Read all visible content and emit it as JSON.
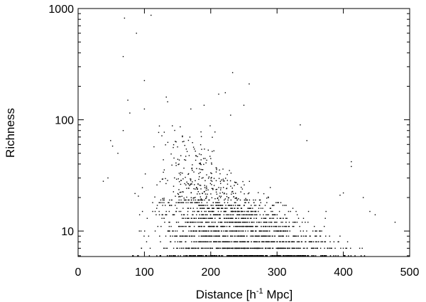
{
  "chart_data": {
    "type": "scatter",
    "title": "",
    "xlabel_main": "Distance [h",
    "xlabel_sup": "-1",
    "xlabel_tail": " Mpc]",
    "ylabel": "Richness",
    "xlim": [
      0,
      500
    ],
    "ylim": [
      5.9,
      1000
    ],
    "yscale": "log",
    "grid": false,
    "legend": "none",
    "point_color": "#000000",
    "xticks": [
      0,
      100,
      200,
      300,
      400,
      500
    ],
    "xtick_labels": [
      "0",
      "100",
      "200",
      "300",
      "400",
      "500"
    ],
    "yticks": [
      10,
      100,
      1000
    ],
    "ytick_labels": [
      "10",
      "100",
      "1000"
    ],
    "band_series": [
      {
        "richness": 6,
        "x_range": [
          28,
          497
        ],
        "count": 300
      },
      {
        "richness": 7,
        "x_range": [
          28,
          488
        ],
        "count": 230
      },
      {
        "richness": 8,
        "x_range": [
          33,
          468
        ],
        "count": 190
      },
      {
        "richness": 9,
        "x_range": [
          36,
          455
        ],
        "count": 170
      },
      {
        "richness": 10,
        "x_range": [
          40,
          445
        ],
        "count": 140
      },
      {
        "richness": 11,
        "x_range": [
          45,
          435
        ],
        "count": 120
      },
      {
        "richness": 12,
        "x_range": [
          45,
          425
        ],
        "count": 110
      },
      {
        "richness": 13,
        "x_range": [
          48,
          415
        ],
        "count": 95
      },
      {
        "richness": 14,
        "x_range": [
          50,
          405
        ],
        "count": 85
      },
      {
        "richness": 15,
        "x_range": [
          52,
          395
        ],
        "count": 75
      },
      {
        "richness": 16,
        "x_range": [
          55,
          385
        ],
        "count": 65
      },
      {
        "richness": 17,
        "x_range": [
          58,
          375
        ],
        "count": 58
      },
      {
        "richness": 18,
        "x_range": [
          58,
          365
        ],
        "count": 52
      },
      {
        "richness": 19,
        "x_range": [
          60,
          355
        ],
        "count": 46
      },
      {
        "richness": 20,
        "x_range": [
          60,
          345
        ],
        "count": 42
      },
      {
        "richness": 22,
        "x_range": [
          62,
          335
        ],
        "count": 38
      },
      {
        "richness": 24,
        "x_range": [
          64,
          320
        ],
        "count": 32
      },
      {
        "richness": 26,
        "x_range": [
          66,
          310
        ],
        "count": 28
      },
      {
        "richness": 28,
        "x_range": [
          68,
          300
        ],
        "count": 24
      },
      {
        "richness": 30,
        "x_range": [
          70,
          290
        ],
        "count": 22
      },
      {
        "richness": 33,
        "x_range": [
          70,
          285
        ],
        "count": 18
      },
      {
        "richness": 36,
        "x_range": [
          72,
          280
        ],
        "count": 16
      },
      {
        "richness": 40,
        "x_range": [
          72,
          275
        ],
        "count": 14
      },
      {
        "richness": 44,
        "x_range": [
          75,
          270
        ],
        "count": 12
      },
      {
        "richness": 48,
        "x_range": [
          75,
          265
        ],
        "count": 10
      },
      {
        "richness": 53,
        "x_range": [
          78,
          260
        ],
        "count": 9
      },
      {
        "richness": 58,
        "x_range": [
          80,
          255
        ],
        "count": 8
      },
      {
        "richness": 64,
        "x_range": [
          80,
          250
        ],
        "count": 7
      },
      {
        "richness": 70,
        "x_range": [
          85,
          245
        ],
        "count": 6
      },
      {
        "richness": 78,
        "x_range": [
          85,
          240
        ],
        "count": 5
      },
      {
        "richness": 86,
        "x_range": [
          90,
          235
        ],
        "count": 4
      }
    ],
    "outliers": [
      {
        "x": 70,
        "y": 820
      },
      {
        "x": 110,
        "y": 870
      },
      {
        "x": 88,
        "y": 600
      },
      {
        "x": 68,
        "y": 370
      },
      {
        "x": 100,
        "y": 225
      },
      {
        "x": 233,
        "y": 265
      },
      {
        "x": 258,
        "y": 210
      },
      {
        "x": 212,
        "y": 170
      },
      {
        "x": 222,
        "y": 175
      },
      {
        "x": 133,
        "y": 160
      },
      {
        "x": 75,
        "y": 150
      },
      {
        "x": 135,
        "y": 145
      },
      {
        "x": 100,
        "y": 125
      },
      {
        "x": 230,
        "y": 110
      },
      {
        "x": 78,
        "y": 115
      },
      {
        "x": 170,
        "y": 125
      },
      {
        "x": 190,
        "y": 135
      },
      {
        "x": 250,
        "y": 135
      },
      {
        "x": 335,
        "y": 90
      },
      {
        "x": 345,
        "y": 65
      },
      {
        "x": 412,
        "y": 42
      },
      {
        "x": 412,
        "y": 38
      },
      {
        "x": 440,
        "y": 15
      },
      {
        "x": 448,
        "y": 14
      },
      {
        "x": 478,
        "y": 12
      },
      {
        "x": 430,
        "y": 20
      },
      {
        "x": 400,
        "y": 22
      },
      {
        "x": 395,
        "y": 21
      },
      {
        "x": 49,
        "y": 65
      },
      {
        "x": 52,
        "y": 58
      },
      {
        "x": 68,
        "y": 80
      },
      {
        "x": 60,
        "y": 50
      },
      {
        "x": 45,
        "y": 30
      },
      {
        "x": 38,
        "y": 28
      }
    ]
  }
}
